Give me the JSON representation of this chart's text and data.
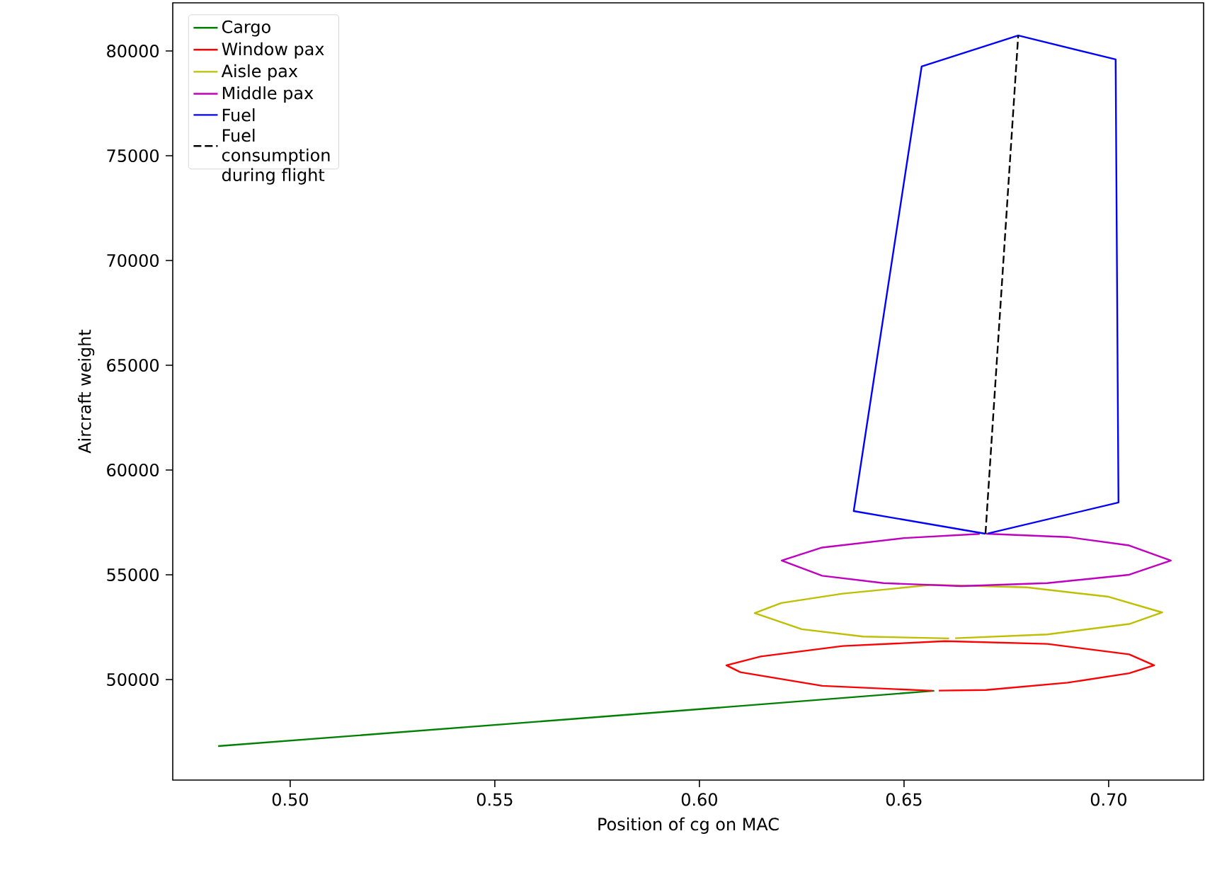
{
  "chart_data": {
    "type": "line",
    "xlabel": "Position of cg on MAC",
    "ylabel": "Aircraft weight",
    "xlim": [
      0.4713,
      0.7232
    ],
    "ylim": [
      45200,
      82300
    ],
    "xticks": [
      {
        "value": 0.5,
        "label": "0.50"
      },
      {
        "value": 0.55,
        "label": "0.55"
      },
      {
        "value": 0.6,
        "label": "0.60"
      },
      {
        "value": 0.65,
        "label": "0.65"
      },
      {
        "value": 0.7,
        "label": "0.70"
      }
    ],
    "yticks": [
      50000,
      55000,
      60000,
      65000,
      70000,
      75000,
      80000
    ],
    "legend": "top left",
    "grid": false,
    "series": [
      {
        "name": "Cargo",
        "color": "#008000",
        "line_style": "solid",
        "x": [
          0.4824,
          0.57,
          0.6574
        ],
        "values": [
          46820,
          48130,
          49460
        ]
      },
      {
        "name": "Window pax",
        "color": "#ff0000",
        "line_style": "solid",
        "x": [
          0.657,
          0.63,
          0.61,
          0.6066,
          0.615,
          0.635,
          0.66,
          0.685,
          0.705,
          0.7111,
          0.705,
          0.69,
          0.67,
          0.6585
        ],
        "values": [
          49460,
          49700,
          50350,
          50680,
          51100,
          51600,
          51830,
          51700,
          51200,
          50680,
          50300,
          49850,
          49500,
          49470
        ]
      },
      {
        "name": "Aisle pax",
        "color": "#bfbf00",
        "line_style": "solid",
        "x": [
          0.661,
          0.64,
          0.625,
          0.6135,
          0.62,
          0.635,
          0.657,
          0.68,
          0.7,
          0.7131,
          0.705,
          0.685,
          0.6625
        ],
        "values": [
          51960,
          52050,
          52400,
          53170,
          53650,
          54100,
          54520,
          54400,
          53950,
          53200,
          52650,
          52150,
          51970
        ]
      },
      {
        "name": "Middle pax",
        "color": "#bf00bf",
        "line_style": "solid",
        "x": [
          0.67,
          0.69,
          0.705,
          0.7152,
          0.705,
          0.685,
          0.664,
          0.645,
          0.63,
          0.6201,
          0.63,
          0.65,
          0.6685
        ],
        "values": [
          56960,
          56800,
          56400,
          55680,
          55000,
          54600,
          54460,
          54600,
          54950,
          55680,
          56300,
          56750,
          56950
        ]
      },
      {
        "name": "Fuel",
        "color": "#0000ff",
        "line_style": "solid",
        "x": [
          0.6699,
          0.6377,
          0.6543,
          0.6779,
          0.7017,
          0.7024,
          0.6705
        ],
        "values": [
          56960,
          58040,
          79260,
          80740,
          79600,
          58450,
          56970
        ]
      },
      {
        "name": "Fuel consumption during flight",
        "color": "#000000",
        "line_style": "dashed",
        "x": [
          0.6699,
          0.6779
        ],
        "values": [
          56960,
          80740
        ]
      }
    ]
  }
}
